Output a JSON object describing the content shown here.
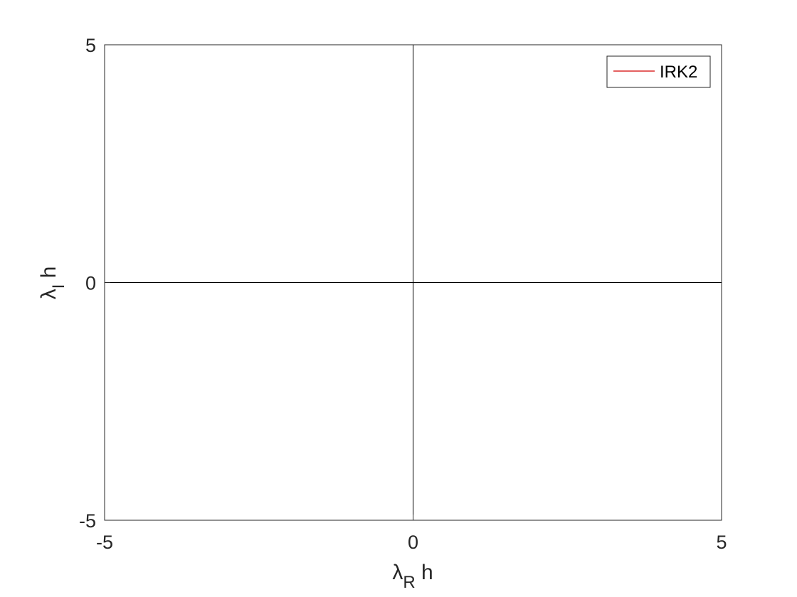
{
  "chart_data": {
    "type": "line",
    "xlabel": {
      "main": "λ",
      "subscript": "R",
      "suffix": " h"
    },
    "ylabel": {
      "main": "λ",
      "subscript": "I",
      "suffix": " h"
    },
    "xlim": [
      -5,
      5
    ],
    "ylim": [
      -5,
      5
    ],
    "x_ticks": [
      -5,
      0,
      5
    ],
    "y_ticks": [
      -5,
      0,
      5
    ],
    "x_tick_labels": [
      "-5",
      "0",
      "5"
    ],
    "y_tick_labels": [
      "-5",
      "0",
      "5"
    ],
    "grid": false,
    "legend_position": "top-right",
    "series": [
      {
        "name": "IRK2",
        "color": "#d40000",
        "x": [],
        "y": []
      }
    ],
    "reference_lines": {
      "horizontal_y": 0,
      "vertical_x": 0,
      "color": "#000000"
    }
  }
}
